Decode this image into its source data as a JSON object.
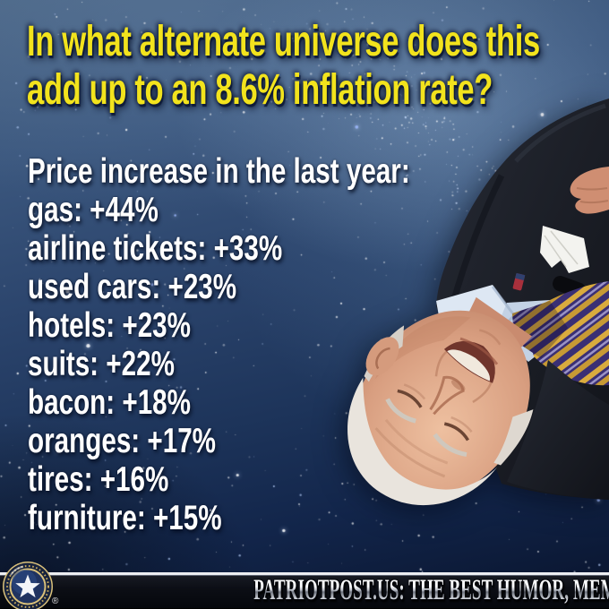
{
  "headline": {
    "line1": "In what alternate universe does this",
    "line2": "add up to an 8.6% inflation rate?",
    "full_text": "In what alternate universe does this add up to an 8.6% inflation rate?"
  },
  "price_list": {
    "title": "Price increase in the last year:",
    "items": [
      {
        "name": "gas",
        "value": "+44%",
        "text": "gas: +44%"
      },
      {
        "name": "airline tickets",
        "value": "+33%",
        "text": "airline tickets: +33%"
      },
      {
        "name": "used cars",
        "value": "+23%",
        "text": "used cars: +23%"
      },
      {
        "name": "hotels",
        "value": "+23%",
        "text": "hotels: +23%"
      },
      {
        "name": "suits",
        "value": "+22%",
        "text": "suits: +22%"
      },
      {
        "name": "bacon",
        "value": "+18%",
        "text": "bacon: +18%"
      },
      {
        "name": "oranges",
        "value": "+17%",
        "text": "oranges:  +17%"
      },
      {
        "name": "tires",
        "value": "+16%",
        "text": "tires: +16%"
      },
      {
        "name": "furniture",
        "value": "+15%",
        "text": "furniture: +15%"
      }
    ]
  },
  "figure": {
    "alt": "upside-down man in dark suit with purple and gold striped tie, white pocket square and flag lapel pin"
  },
  "footer": {
    "registered_mark": "®",
    "brand_text": "PATRIOTPOST.US: THE BEST HUMOR, MEMES, & CARTOONS",
    "seal_icon": "patriot-post-star-seal"
  },
  "colors": {
    "headline_yellow": "#f2e31d",
    "list_white": "#ffffff",
    "sky_top": "#4a6585",
    "sky_bottom": "#091227",
    "suit_dark": "#191c24",
    "tie_purple": "#3a2f74",
    "tie_gold": "#d9ab3e",
    "shirt_blue": "#d4e0ee",
    "footer_bar": "#0c0e15",
    "seal_navy": "#20335f",
    "seal_gold": "#d9c07a"
  }
}
